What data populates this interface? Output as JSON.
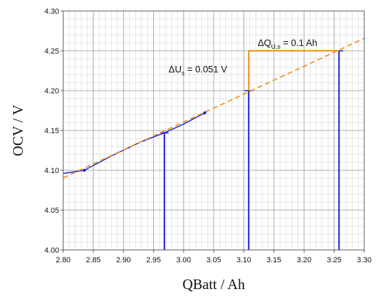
{
  "chart_data": {
    "type": "line",
    "title": "",
    "xlabel": "QBatt / Ah",
    "ylabel": "OCV / V",
    "xlim": [
      2.8,
      3.3
    ],
    "ylim": [
      4.0,
      4.3
    ],
    "x_ticks": [
      "2.80",
      "2.85",
      "2.90",
      "2.95",
      "3.00",
      "3.05",
      "3.10",
      "3.15",
      "3.20",
      "3.25",
      "3.30"
    ],
    "y_ticks": [
      "4.00",
      "4.05",
      "4.10",
      "4.15",
      "4.20",
      "4.25",
      "4.30"
    ],
    "x_minor_step": 0.01,
    "y_minor_step": 0.01,
    "grid": true,
    "series": [
      {
        "kind": "measured",
        "color": "#1f1fcc",
        "x": [
          2.8,
          2.835,
          2.88,
          2.93,
          2.968,
          3.0,
          3.035
        ],
        "y": [
          4.096,
          4.1,
          4.118,
          4.136,
          4.147,
          4.158,
          4.172
        ]
      },
      {
        "kind": "fit",
        "color": "#f0901e",
        "style": "dashed",
        "x": [
          2.8,
          3.3
        ],
        "y": [
          4.0905,
          4.2657
        ]
      }
    ],
    "markers": [
      {
        "x": 2.835,
        "y": 4.1
      },
      {
        "x": 3.035,
        "y": 4.172
      }
    ],
    "vertical_lines": [
      {
        "x": 2.968,
        "y": 4.147,
        "color": "#1f1fcc"
      },
      {
        "x": 3.108,
        "y": 4.2,
        "color": "#1f1fcc"
      },
      {
        "x": 3.258,
        "y": 4.25,
        "color": "#1f1fcc"
      }
    ],
    "delta_bracket": {
      "color": "#f0901e",
      "x_start": 3.108,
      "x_end": 3.258,
      "y_low": 4.2,
      "y_high": 4.25
    },
    "annotations": [
      {
        "id": "du",
        "main": "ΔU",
        "sub": "s",
        "rest": " = 0.051 V",
        "x": 2.975,
        "y": 4.223
      },
      {
        "id": "dq",
        "main": "ΔQ",
        "sub": "U,s",
        "rest": " = 0.1 Ah",
        "x": 3.123,
        "y": 4.256
      }
    ]
  }
}
